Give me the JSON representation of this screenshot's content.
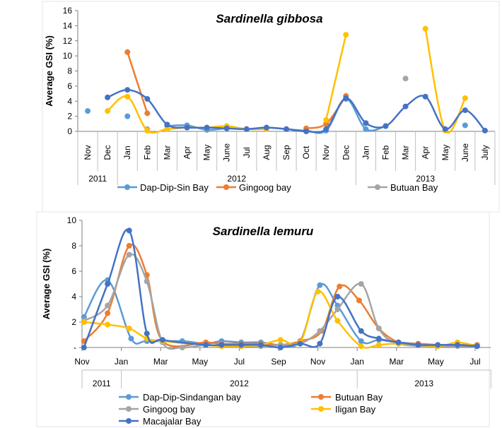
{
  "chart_data": [
    {
      "type": "line",
      "title": "Sardinella gibbosa",
      "ylabel": "Average GSI (%)",
      "xlabel": "",
      "ylim": [
        0,
        16
      ],
      "yticks": [
        "0",
        "2",
        "4",
        "6",
        "8",
        "10",
        "12",
        "14",
        "16"
      ],
      "categories": [
        "Nov",
        "Dec",
        "Jan",
        "Feb",
        "Mar",
        "Apr",
        "May",
        "June",
        "Jul",
        "Aug",
        "Sep",
        "Oct",
        "Nov",
        "Dec",
        "Jan",
        "Feb",
        "Mar",
        "Apr",
        "May",
        "June",
        "July"
      ],
      "years": [
        {
          "label": "2011",
          "from": 0,
          "to": 1
        },
        {
          "label": "2012",
          "from": 2,
          "to": 13
        },
        {
          "label": "2013",
          "from": 14,
          "to": 20
        }
      ],
      "series": [
        {
          "name": "Dap-Dip-Sin Bay",
          "color": "#5b9bd5",
          "values": [
            2.7,
            null,
            2.0,
            null,
            0.7,
            0.8,
            0.2,
            0.4,
            0.3,
            0.5,
            0.3,
            0.1,
            0.1,
            4.3,
            0.3,
            0.7,
            null,
            null,
            null,
            0.8,
            null
          ]
        },
        {
          "name": "Gingoog bay",
          "color": "#ed7d31",
          "values": [
            null,
            null,
            10.5,
            2.4,
            null,
            null,
            null,
            null,
            null,
            null,
            null,
            0.4,
            1.0,
            4.7,
            null,
            null,
            null,
            null,
            null,
            null,
            null
          ]
        },
        {
          "name": "Butuan Bay",
          "color": "#a5a5a5",
          "values": [
            null,
            null,
            null,
            0.3,
            null,
            null,
            null,
            null,
            null,
            null,
            null,
            null,
            null,
            null,
            null,
            null,
            7.0,
            null,
            null,
            null,
            null
          ]
        },
        {
          "name": "Iligan Bay",
          "color": "#ffc000",
          "legend": false,
          "values": [
            null,
            2.7,
            4.6,
            0.1,
            0.3,
            0.5,
            0.5,
            0.7,
            0.3,
            0.3,
            null,
            null,
            1.5,
            12.8,
            null,
            null,
            null,
            13.6,
            0.1,
            4.4,
            null
          ]
        },
        {
          "name": "Macajalar Bay",
          "color": "#4472c4",
          "legend": false,
          "values": [
            null,
            4.5,
            5.5,
            4.3,
            0.9,
            0.5,
            0.5,
            0.4,
            0.3,
            0.5,
            0.3,
            0.0,
            0.3,
            4.4,
            1.1,
            0.7,
            3.3,
            4.6,
            0.3,
            2.8,
            0.1
          ]
        }
      ]
    },
    {
      "type": "line",
      "title": "Sardinella lemuru",
      "ylabel": "Average GSI (%)",
      "xlabel": "",
      "ylim": [
        0,
        10
      ],
      "yticks": [
        "-",
        "2",
        "4",
        "6",
        "8",
        "10"
      ],
      "x_ticks": [
        {
          "month": 0,
          "label": "Nov"
        },
        {
          "month": 2,
          "label": "Jan"
        },
        {
          "month": 4,
          "label": "Mar"
        },
        {
          "month": 6,
          "label": "May"
        },
        {
          "month": 8,
          "label": "Jul"
        },
        {
          "month": 10,
          "label": "Sep"
        },
        {
          "month": 12,
          "label": "Nov"
        },
        {
          "month": 14,
          "label": "Jan"
        },
        {
          "month": 16,
          "label": "Mar"
        },
        {
          "month": 18,
          "label": "May"
        },
        {
          "month": 20,
          "label": "Jul"
        }
      ],
      "years": [
        {
          "label": "2011",
          "from": 0,
          "to": 2
        },
        {
          "label": "2012",
          "from": 2,
          "to": 14
        },
        {
          "label": "2013",
          "from": 14,
          "to": 20.8
        }
      ],
      "series": [
        {
          "name": "Dap-Dip-Sindangan bay",
          "color": "#5b9bd5",
          "points": [
            [
              0.1,
              2.4
            ],
            [
              1.3,
              5.3
            ],
            [
              2.5,
              0.7
            ],
            [
              3.3,
              0.5
            ],
            [
              5.1,
              0.5
            ],
            [
              6.3,
              0.3
            ],
            [
              7.1,
              0.5
            ],
            [
              8.1,
              0.4
            ],
            [
              9.1,
              0.4
            ],
            [
              10.1,
              0.2
            ],
            [
              11.1,
              0.5
            ],
            [
              12.1,
              4.9
            ],
            [
              13.0,
              3.3
            ],
            [
              14.2,
              0.5
            ],
            [
              15.1,
              0.6
            ],
            [
              16.1,
              0.4
            ],
            [
              18.1,
              0.2
            ],
            [
              19.1,
              0.2
            ],
            [
              20.1,
              0.2
            ]
          ]
        },
        {
          "name": "Butuan Bay",
          "color": "#ed7d31",
          "points": [
            [
              0.1,
              0.5
            ],
            [
              1.3,
              2.7
            ],
            [
              2.4,
              8.0
            ],
            [
              3.3,
              5.7
            ],
            [
              4.1,
              0.5
            ],
            [
              6.3,
              0.4
            ],
            [
              7.1,
              0.3
            ],
            [
              8.1,
              0.3
            ],
            [
              9.1,
              0.3
            ],
            [
              10.1,
              0.2
            ],
            [
              11.1,
              0.5
            ],
            [
              12.2,
              1.3
            ],
            [
              13.1,
              4.8
            ],
            [
              14.1,
              3.7
            ],
            [
              15.1,
              1.5
            ],
            [
              16.1,
              0.4
            ],
            [
              17.1,
              0.3
            ],
            [
              18.1,
              0.2
            ],
            [
              19.1,
              0.2
            ],
            [
              20.1,
              0.2
            ]
          ]
        },
        {
          "name": "Gingoog bay",
          "color": "#a5a5a5",
          "points": [
            [
              0.1,
              2.1
            ],
            [
              1.3,
              3.3
            ],
            [
              2.4,
              7.3
            ],
            [
              3.3,
              5.2
            ],
            [
              4.1,
              0.4
            ],
            [
              5.1,
              0.0
            ],
            [
              6.3,
              0.2
            ],
            [
              7.1,
              0.1
            ],
            [
              8.1,
              0.1
            ],
            [
              9.1,
              0.1
            ],
            [
              10.1,
              0.2
            ],
            [
              11.1,
              0.3
            ],
            [
              12.1,
              1.3
            ],
            [
              13.0,
              3.0
            ],
            [
              14.2,
              5.0
            ],
            [
              15.1,
              1.5
            ],
            [
              16.1,
              0.3
            ],
            [
              18.1,
              0.1
            ],
            [
              19.1,
              0.1
            ],
            [
              20.1,
              0.1
            ]
          ]
        },
        {
          "name": "Iligan Bay",
          "color": "#ffc000",
          "points": [
            [
              0.1,
              2.0
            ],
            [
              1.3,
              1.8
            ],
            [
              2.4,
              1.5
            ],
            [
              3.3,
              0.7
            ],
            [
              4.1,
              0.5
            ],
            [
              6.3,
              0.2
            ],
            [
              7.1,
              0.1
            ],
            [
              8.1,
              0.1
            ],
            [
              9.1,
              0.2
            ],
            [
              10.1,
              0.6
            ],
            [
              11.1,
              0.4
            ],
            [
              12.0,
              4.4
            ],
            [
              13.0,
              2.1
            ],
            [
              14.2,
              0.1
            ],
            [
              15.1,
              0.2
            ],
            [
              16.1,
              0.3
            ],
            [
              18.1,
              0.1
            ],
            [
              19.1,
              0.4
            ],
            [
              20.1,
              0.1
            ]
          ]
        },
        {
          "name": "Macajalar Bay",
          "color": "#4472c4",
          "points": [
            [
              0.1,
              0.0
            ],
            [
              1.3,
              5.0
            ],
            [
              2.4,
              9.2
            ],
            [
              3.3,
              1.1
            ],
            [
              4.1,
              0.6
            ],
            [
              6.3,
              0.2
            ],
            [
              7.1,
              0.2
            ],
            [
              8.1,
              0.2
            ],
            [
              9.1,
              0.2
            ],
            [
              10.1,
              0.0
            ],
            [
              11.1,
              0.3
            ],
            [
              12.1,
              0.3
            ],
            [
              13.0,
              4.0
            ],
            [
              14.2,
              1.3
            ],
            [
              15.1,
              0.7
            ],
            [
              16.1,
              0.4
            ],
            [
              17.1,
              0.2
            ],
            [
              18.1,
              0.2
            ],
            [
              19.1,
              0.2
            ],
            [
              20.1,
              0.1
            ]
          ]
        }
      ]
    }
  ]
}
